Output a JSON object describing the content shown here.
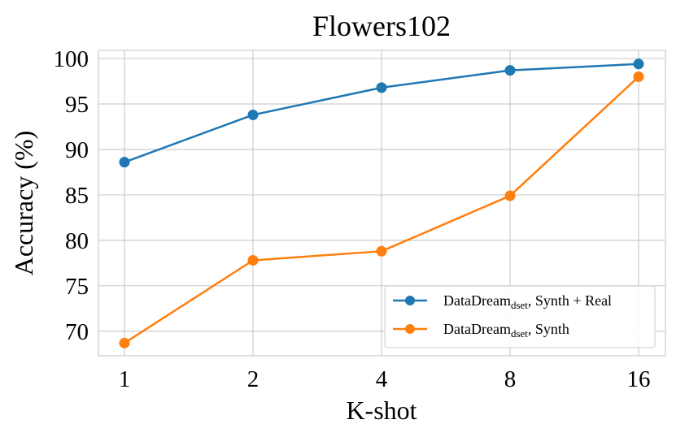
{
  "chart_data": {
    "type": "line",
    "title": "Flowers102",
    "xlabel": "K-shot",
    "ylabel": "Accuracy (%)",
    "categories": [
      "1",
      "2",
      "4",
      "8",
      "16"
    ],
    "ylim": [
      67.3,
      100.9
    ],
    "yticks": [
      70,
      75,
      80,
      85,
      90,
      95,
      100
    ],
    "grid": true,
    "legend_position": "lower right",
    "series": [
      {
        "name_main": "DataDream",
        "name_sub": "dset",
        "name_rest": ", Synth + Real",
        "color": "#1f77b4",
        "values": [
          88.6,
          93.8,
          96.8,
          98.7,
          99.4
        ]
      },
      {
        "name_main": "DataDream",
        "name_sub": "dset",
        "name_rest": ", Synth",
        "color": "#ff7f0e",
        "values": [
          68.7,
          77.8,
          78.8,
          84.9,
          98.0
        ]
      }
    ]
  }
}
